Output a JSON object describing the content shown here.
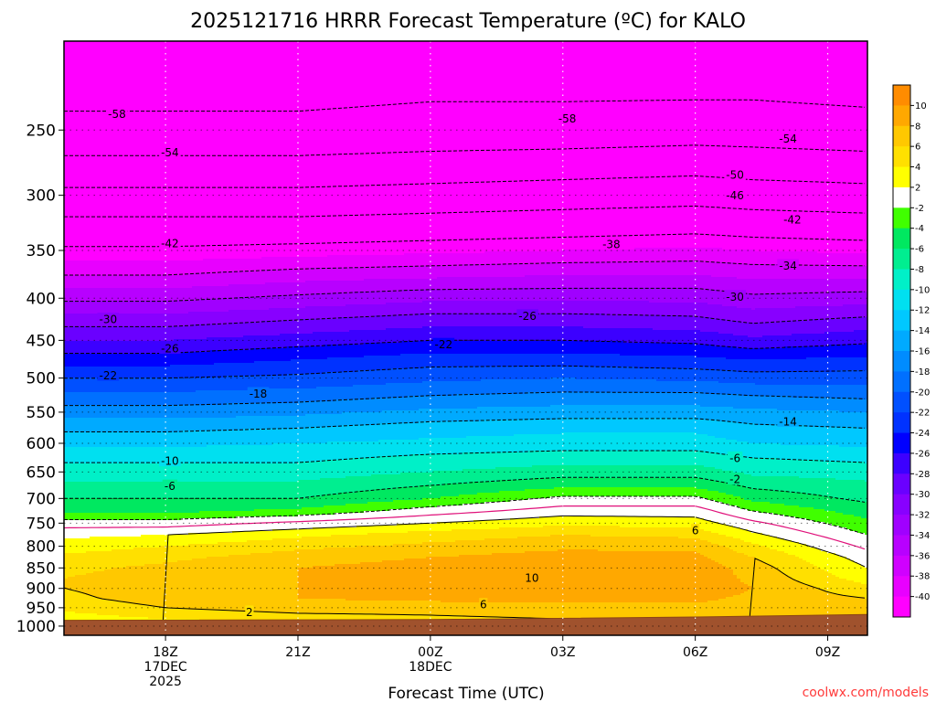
{
  "chart_data": {
    "type": "heatmap",
    "title": "2025121716 HRRR Forecast Temperature (ºC) for KALO",
    "xlabel": "Forecast Time (UTC)",
    "ylabel": "",
    "credit": "coolwx.com/models",
    "y_scale": "log",
    "y_reversed": true,
    "ylim": [
      1026,
      195
    ],
    "xlim_hours": [
      -2.3,
      15.9
    ],
    "y_ticks": [
      250,
      300,
      350,
      400,
      450,
      500,
      550,
      600,
      650,
      700,
      750,
      800,
      850,
      900,
      950,
      1000
    ],
    "x_ticks": [
      {
        "hour": 0,
        "labels": [
          "18Z",
          "17DEC",
          "2025"
        ]
      },
      {
        "hour": 3,
        "labels": [
          "21Z"
        ]
      },
      {
        "hour": 6,
        "labels": [
          "00Z",
          "18DEC"
        ]
      },
      {
        "hour": 9,
        "labels": [
          "03Z"
        ]
      },
      {
        "hour": 12,
        "labels": [
          "06Z"
        ]
      },
      {
        "hour": 15,
        "labels": [
          "09Z"
        ]
      }
    ],
    "grid": true,
    "colorbar": {
      "bounds": [
        -42,
        -40,
        -38,
        -36,
        -34,
        -32,
        -30,
        -28,
        -26,
        -24,
        -22,
        -20,
        -18,
        -16,
        -14,
        -12,
        -10,
        -8,
        -6,
        -4,
        -2,
        2,
        4,
        6,
        8,
        10,
        12
      ],
      "colors": [
        "#ff00ff",
        "#e800ff",
        "#d000ff",
        "#b800ff",
        "#a000ff",
        "#8800ff",
        "#6a00ff",
        "#3c00ff",
        "#0000ff",
        "#0032ff",
        "#0050ff",
        "#0070ff",
        "#008cff",
        "#00aaff",
        "#00c8ff",
        "#00e0f0",
        "#00f0c8",
        "#00ee90",
        "#00e860",
        "#40ff00",
        "#ffffff",
        "#ffff00",
        "#ffe000",
        "#ffc800",
        "#ffa800",
        "#ff8c00"
      ],
      "tick_labels": [
        "10",
        "8",
        "6",
        "4",
        "2",
        "-2",
        "-4",
        "-6",
        "-8",
        "-10",
        "-12",
        "-14",
        "-16",
        "-18",
        "-20",
        "-22",
        "-24",
        "-26",
        "-28",
        "-30",
        "-32",
        "-34",
        "-36",
        "-38",
        "-40"
      ]
    },
    "temperature_profile": {
      "pressure": [
        1000,
        980,
        950,
        925,
        900,
        875,
        850,
        825,
        800,
        775,
        750,
        725,
        700,
        675,
        650,
        625,
        600,
        575,
        550,
        525,
        500,
        475,
        450,
        425,
        400,
        375,
        350,
        325,
        300,
        275,
        250,
        225,
        200
      ],
      "columns": [
        {
          "hour": -2.3,
          "temps": [
            1.5,
            3,
            4.5,
            5.5,
            6,
            6,
            5.5,
            4.5,
            3,
            1.5,
            -1,
            -4.5,
            -6,
            -7.5,
            -9,
            -10.5,
            -12.5,
            -14.5,
            -17,
            -19.5,
            -22,
            -25,
            -28,
            -31,
            -34.5,
            -38,
            -41.5,
            -45,
            -49,
            -53,
            -57,
            -59,
            -60
          ]
        },
        {
          "hour": 0,
          "temps": [
            2,
            4,
            6,
            7,
            7,
            7,
            6.5,
            5.5,
            4,
            2,
            -1,
            -4.5,
            -6,
            -7.5,
            -9,
            -10.5,
            -12.5,
            -14.5,
            -17,
            -19.5,
            -22,
            -25,
            -28,
            -31,
            -34.5,
            -38,
            -41.5,
            -45,
            -49,
            -53,
            -57,
            -59,
            -60
          ]
        },
        {
          "hour": 3,
          "temps": [
            3,
            5,
            7,
            8,
            8,
            8,
            8,
            7,
            5.5,
            3.5,
            0.5,
            -3.5,
            -6,
            -7.5,
            -9,
            -10.5,
            -12,
            -14,
            -16.5,
            -19,
            -21.5,
            -24,
            -27,
            -30,
            -33.5,
            -37,
            -41,
            -45,
            -49,
            -53,
            -57,
            -59,
            -60
          ]
        },
        {
          "hour": 6,
          "temps": [
            4,
            5.5,
            7,
            8.5,
            9,
            9,
            9,
            8,
            6.5,
            5,
            2,
            -1,
            -4,
            -6,
            -8,
            -9.5,
            -11.5,
            -13,
            -15.5,
            -18,
            -20.5,
            -23,
            -26,
            -29,
            -32.5,
            -36.5,
            -40.5,
            -44.5,
            -48.5,
            -52.5,
            -56.5,
            -58.5,
            -59.5
          ]
        },
        {
          "hour": 9,
          "temps": [
            4,
            6,
            7.5,
            8.5,
            9.5,
            10,
            10,
            9,
            7.5,
            6,
            3.5,
            1,
            -1.5,
            -4.5,
            -7,
            -9,
            -11,
            -12.5,
            -15,
            -17.5,
            -20,
            -23,
            -26,
            -29,
            -32.5,
            -36,
            -40,
            -44,
            -48,
            -52,
            -56.5,
            -58.5,
            -59.5
          ]
        },
        {
          "hour": 12,
          "temps": [
            5,
            6,
            7.5,
            8.5,
            9.5,
            9.5,
            9.5,
            8.5,
            7.5,
            5.5,
            3,
            1,
            -1.5,
            -4.5,
            -7,
            -9,
            -11,
            -12.5,
            -15,
            -17.5,
            -20.5,
            -23.5,
            -26.5,
            -29.5,
            -32.5,
            -36,
            -39.5,
            -43.5,
            -47.5,
            -51.5,
            -56,
            -58.5,
            -59.5
          ]
        },
        {
          "hour": 13.3,
          "temps": [
            6,
            6,
            7,
            7.5,
            8,
            7.5,
            7,
            6,
            4.5,
            2.5,
            0.5,
            -2,
            -4.5,
            -6.5,
            -8.5,
            -10,
            -12,
            -13.5,
            -15.5,
            -18,
            -21,
            -24,
            -27.5,
            -30.5,
            -33.5,
            -36.5,
            -40,
            -44,
            -48,
            -52,
            -56,
            -58.5,
            -59.5
          ]
        },
        {
          "hour": 15.9,
          "temps": [
            7,
            7.5,
            7,
            6,
            4.5,
            3,
            2,
            1,
            -0.5,
            -2,
            -3.5,
            -5,
            -6.5,
            -7.5,
            -9,
            -10.5,
            -12.5,
            -14,
            -16,
            -18.5,
            -21,
            -23.5,
            -26.5,
            -29.5,
            -33,
            -36.5,
            -40.5,
            -44.5,
            -48.5,
            -52.5,
            -56.5,
            -59,
            -60
          ]
        }
      ]
    },
    "surface_pressure": [
      {
        "hour": -2.3,
        "value": 984
      },
      {
        "hour": 6,
        "value": 982
      },
      {
        "hour": 12,
        "value": 975
      },
      {
        "hour": 15.9,
        "value": 968
      }
    ],
    "contour_labels": [
      {
        "text": "-58",
        "hour": -1.1,
        "p": 239
      },
      {
        "text": "-58",
        "hour": 9.1,
        "p": 242
      },
      {
        "text": "-54",
        "hour": 0.1,
        "p": 266
      },
      {
        "text": "-54",
        "hour": 14.1,
        "p": 256
      },
      {
        "text": "-50",
        "hour": 12.9,
        "p": 283
      },
      {
        "text": "-46",
        "hour": 12.9,
        "p": 300
      },
      {
        "text": "-42",
        "hour": 0.1,
        "p": 343
      },
      {
        "text": "-42",
        "hour": 14.2,
        "p": 321
      },
      {
        "text": "-38",
        "hour": 10.1,
        "p": 344
      },
      {
        "text": "-34",
        "hour": 14.1,
        "p": 365
      },
      {
        "text": "-30",
        "hour": -1.3,
        "p": 424
      },
      {
        "text": "-30",
        "hour": 12.9,
        "p": 398
      },
      {
        "text": "-26",
        "hour": 0.1,
        "p": 460
      },
      {
        "text": "-26",
        "hour": 8.2,
        "p": 420
      },
      {
        "text": "-22",
        "hour": -1.3,
        "p": 496
      },
      {
        "text": "-22",
        "hour": 6.3,
        "p": 455
      },
      {
        "text": "-18",
        "hour": 2.1,
        "p": 522
      },
      {
        "text": "-14",
        "hour": 14.1,
        "p": 564
      },
      {
        "text": "-10",
        "hour": 0.1,
        "p": 630
      },
      {
        "text": "-6",
        "hour": 0.1,
        "p": 676
      },
      {
        "text": "-6",
        "hour": 12.9,
        "p": 625
      },
      {
        "text": "-2",
        "hour": 12.9,
        "p": 663
      },
      {
        "text": "6",
        "hour": 12.0,
        "p": 765
      },
      {
        "text": "10",
        "hour": 8.3,
        "p": 873
      },
      {
        "text": "6",
        "hour": 7.2,
        "p": 941
      },
      {
        "text": "2",
        "hour": 1.9,
        "p": 961
      }
    ]
  }
}
